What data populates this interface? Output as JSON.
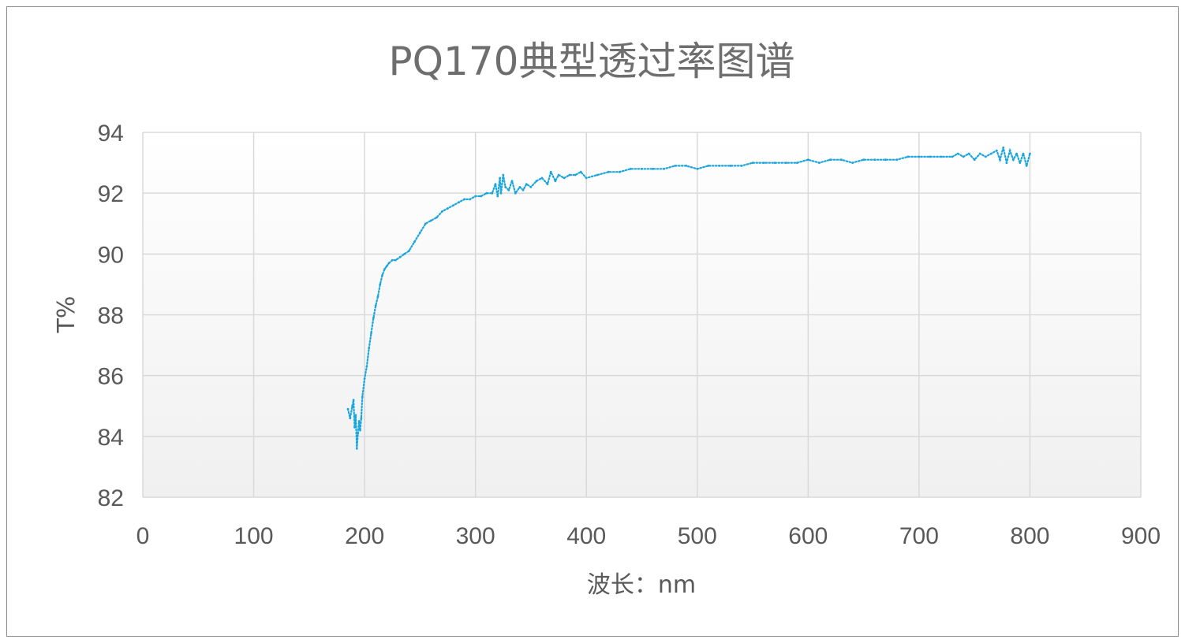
{
  "chart_data": {
    "type": "scatter",
    "title": "PQ170典型透过率图谱",
    "xlabel": "波长：nm",
    "ylabel": "T%",
    "xlim": [
      0,
      900
    ],
    "ylim": [
      82,
      94
    ],
    "xticks": [
      0,
      100,
      200,
      300,
      400,
      500,
      600,
      700,
      800,
      900
    ],
    "yticks": [
      82,
      84,
      86,
      88,
      90,
      92,
      94
    ],
    "grid": true,
    "legend": "none",
    "series_color": "#1aa6dc",
    "series": [
      {
        "x": [
          185,
          187,
          189,
          190,
          191,
          192,
          193,
          194,
          195,
          196,
          197,
          198,
          200,
          202,
          204,
          206,
          208,
          210,
          212,
          214,
          216,
          218,
          220,
          222,
          225,
          228,
          232,
          236,
          240,
          245,
          250,
          255,
          260,
          265,
          270,
          275,
          280,
          285,
          290,
          295,
          300,
          305,
          310,
          315,
          318,
          320,
          322,
          323,
          325,
          327,
          330,
          333,
          336,
          340,
          343,
          346,
          350,
          355,
          360,
          365,
          368,
          372,
          375,
          380,
          385,
          390,
          395,
          400,
          410,
          420,
          430,
          440,
          450,
          460,
          470,
          480,
          490,
          500,
          510,
          520,
          530,
          540,
          550,
          560,
          570,
          580,
          590,
          600,
          610,
          620,
          630,
          640,
          650,
          660,
          670,
          680,
          690,
          700,
          710,
          720,
          730,
          735,
          740,
          745,
          750,
          755,
          760,
          765,
          770,
          773,
          776,
          779,
          782,
          785,
          788,
          791,
          794,
          797,
          800
        ],
        "y": [
          84.9,
          84.6,
          85.0,
          85.2,
          84.3,
          84.7,
          83.6,
          84.1,
          84.5,
          84.2,
          84.6,
          85.3,
          85.9,
          86.3,
          86.9,
          87.4,
          87.9,
          88.3,
          88.6,
          89.0,
          89.3,
          89.5,
          89.6,
          89.7,
          89.8,
          89.8,
          89.9,
          90.0,
          90.1,
          90.4,
          90.7,
          91.0,
          91.1,
          91.2,
          91.4,
          91.5,
          91.6,
          91.7,
          91.8,
          91.8,
          91.9,
          91.9,
          92.0,
          92.0,
          92.3,
          91.9,
          92.5,
          92.0,
          92.6,
          92.2,
          92.1,
          92.4,
          92.0,
          92.2,
          92.1,
          92.3,
          92.2,
          92.4,
          92.5,
          92.3,
          92.7,
          92.4,
          92.6,
          92.5,
          92.6,
          92.6,
          92.7,
          92.5,
          92.6,
          92.7,
          92.7,
          92.8,
          92.8,
          92.8,
          92.8,
          92.9,
          92.9,
          92.8,
          92.9,
          92.9,
          92.9,
          92.9,
          93.0,
          93.0,
          93.0,
          93.0,
          93.0,
          93.1,
          93.0,
          93.1,
          93.1,
          93.0,
          93.1,
          93.1,
          93.1,
          93.1,
          93.2,
          93.2,
          93.2,
          93.2,
          93.2,
          93.3,
          93.2,
          93.3,
          93.1,
          93.3,
          93.2,
          93.3,
          93.4,
          93.1,
          93.5,
          93.0,
          93.4,
          93.1,
          93.3,
          93.0,
          93.3,
          92.9,
          93.3
        ]
      }
    ]
  }
}
